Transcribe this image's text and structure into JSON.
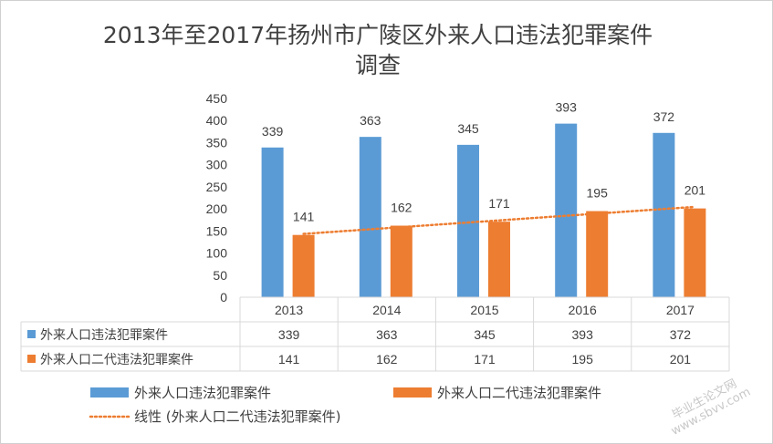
{
  "chart_data": {
    "type": "bar",
    "title_line1": "2013年至2017年扬州市广陵区外来人口违法犯罪案件",
    "title_line2": "调查",
    "categories": [
      "2013",
      "2014",
      "2015",
      "2016",
      "2017"
    ],
    "ylim": [
      0,
      450
    ],
    "yticks": [
      0,
      50,
      100,
      150,
      200,
      250,
      300,
      350,
      400,
      450
    ],
    "grid": false,
    "series": [
      {
        "name": "外来人口违法犯罪案件",
        "color": "#5b9bd5",
        "values": [
          339,
          363,
          345,
          393,
          372
        ]
      },
      {
        "name": "外来人口二代违法犯罪案件",
        "color": "#ed7d31",
        "values": [
          141,
          162,
          171,
          195,
          201
        ]
      }
    ],
    "trendline": {
      "name": "线性 (外来人口二代违法犯罪案件)",
      "series_index": 1,
      "type": "linear",
      "color": "#ed7d31",
      "style": "dotted"
    },
    "data_table": true,
    "legend_position": "bottom"
  },
  "watermark": {
    "line1": "毕业生论文网",
    "line2": "www.sbvv.com"
  }
}
